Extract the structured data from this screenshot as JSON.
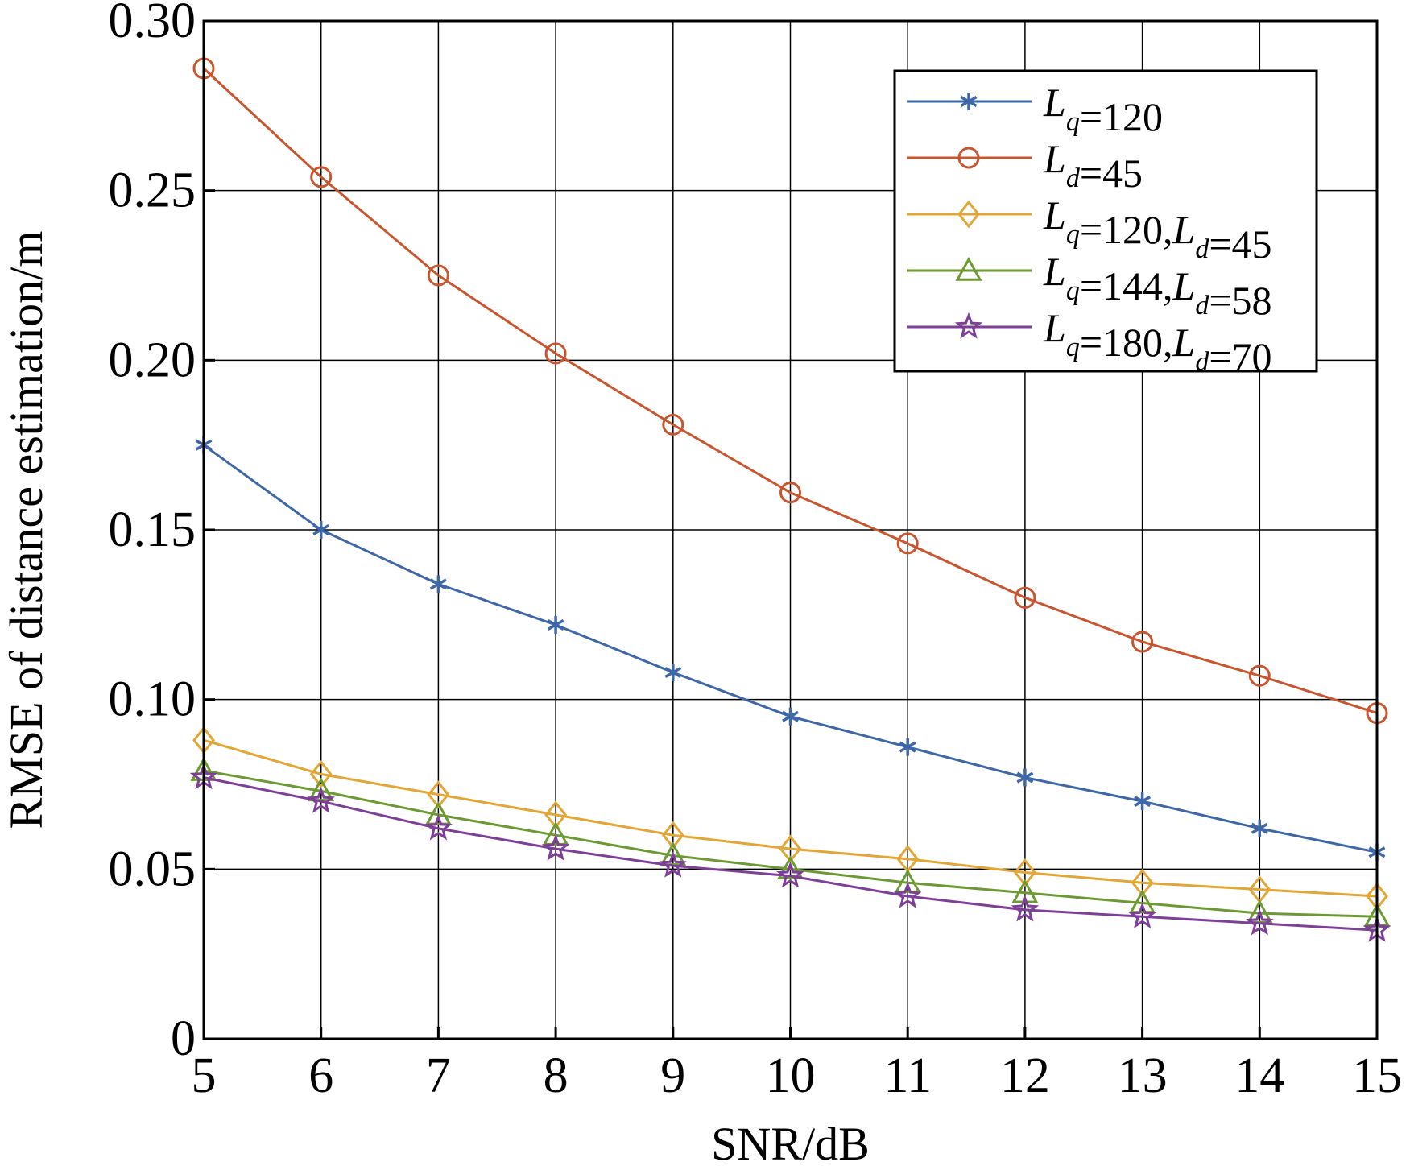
{
  "chart_data": {
    "type": "line",
    "xlabel": "SNR/dB",
    "ylabel": "RMSE of distance estimation/m",
    "xlim": [
      5,
      15
    ],
    "ylim": [
      0,
      0.3
    ],
    "xticks": [
      "5",
      "6",
      "7",
      "8",
      "9",
      "10",
      "11",
      "12",
      "13",
      "14",
      "15"
    ],
    "yticks": [
      "0",
      "0.05",
      "0.10",
      "0.15",
      "0.20",
      "0.25",
      "0.30"
    ],
    "grid": true,
    "legend_position": "top-right",
    "x": [
      5,
      6,
      7,
      8,
      9,
      10,
      11,
      12,
      13,
      14,
      15
    ],
    "series": [
      {
        "legend": [
          {
            "t": "L",
            "s": "q"
          },
          {
            "t": "=120"
          }
        ],
        "color": "#3E67A8",
        "marker": "asterisk",
        "values": [
          0.175,
          0.15,
          0.134,
          0.122,
          0.108,
          0.095,
          0.086,
          0.077,
          0.07,
          0.062,
          0.055
        ]
      },
      {
        "legend": [
          {
            "t": "L",
            "s": "d"
          },
          {
            "t": "=45"
          }
        ],
        "color": "#C8552E",
        "marker": "circle",
        "values": [
          0.286,
          0.254,
          0.225,
          0.202,
          0.181,
          0.161,
          0.146,
          0.13,
          0.117,
          0.107,
          0.096
        ]
      },
      {
        "legend": [
          {
            "t": "L",
            "s": "q"
          },
          {
            "t": "=120,"
          },
          {
            "t": "L",
            "s": "d"
          },
          {
            "t": "=45"
          }
        ],
        "color": "#E3A534",
        "marker": "diamond",
        "values": [
          0.088,
          0.078,
          0.072,
          0.066,
          0.06,
          0.056,
          0.053,
          0.049,
          0.046,
          0.044,
          0.042
        ]
      },
      {
        "legend": [
          {
            "t": "L",
            "s": "q"
          },
          {
            "t": "=144,"
          },
          {
            "t": "L",
            "s": "d"
          },
          {
            "t": "=58"
          }
        ],
        "color": "#6C9A32",
        "marker": "triangle",
        "values": [
          0.079,
          0.073,
          0.066,
          0.06,
          0.054,
          0.05,
          0.046,
          0.043,
          0.04,
          0.037,
          0.036
        ]
      },
      {
        "legend": [
          {
            "t": "L",
            "s": "q"
          },
          {
            "t": "=180,"
          },
          {
            "t": "L",
            "s": "d"
          },
          {
            "t": "=70"
          }
        ],
        "color": "#7E3F98",
        "marker": "star",
        "values": [
          0.077,
          0.07,
          0.062,
          0.056,
          0.051,
          0.048,
          0.042,
          0.038,
          0.036,
          0.034,
          0.032
        ]
      }
    ]
  }
}
